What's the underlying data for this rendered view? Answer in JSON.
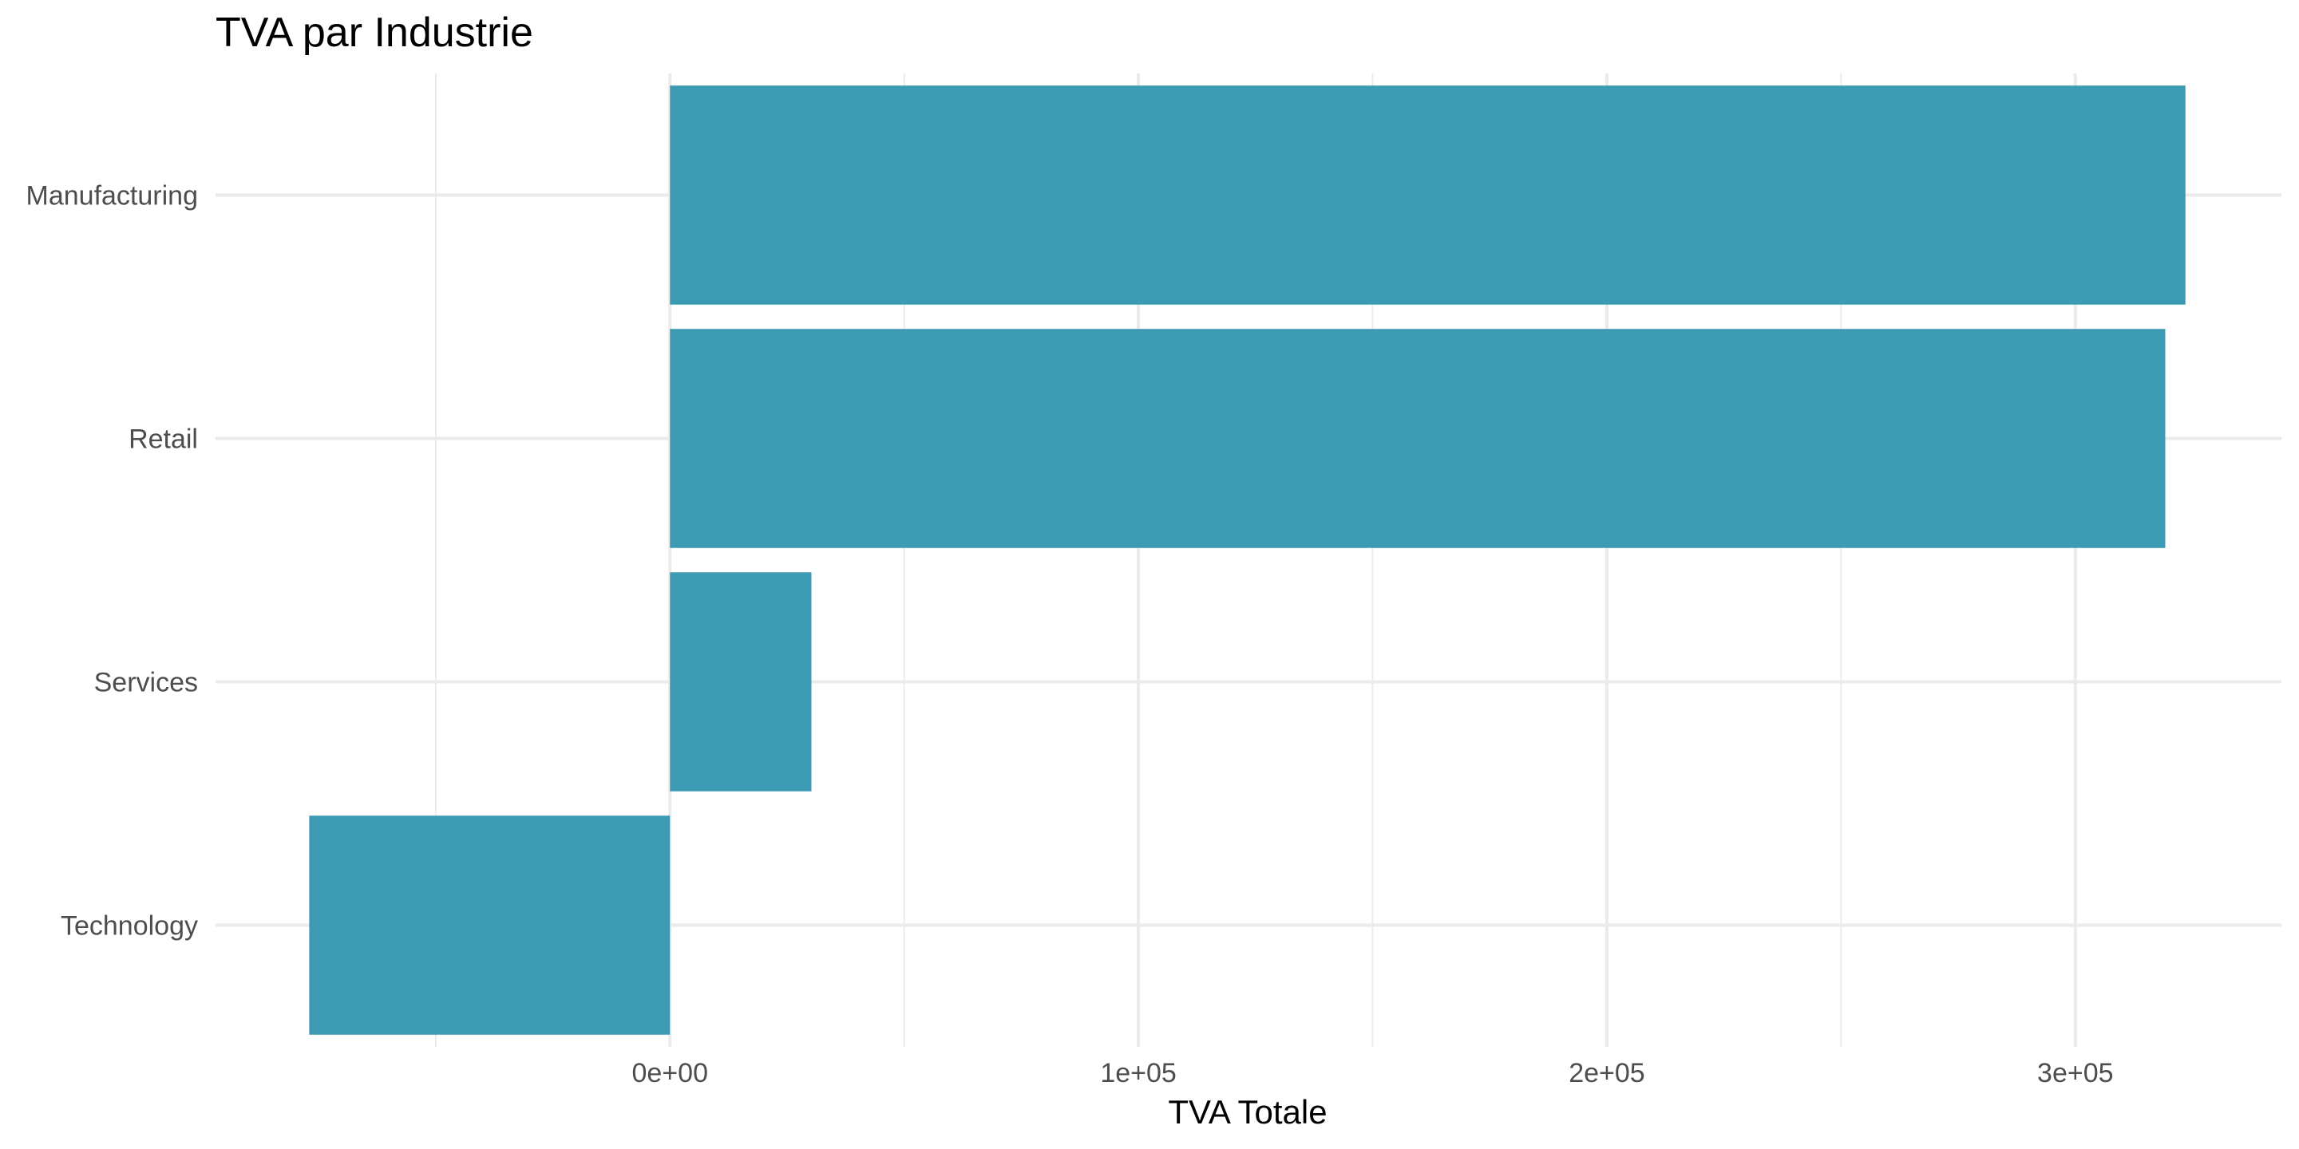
{
  "chart_data": {
    "type": "bar",
    "orientation": "horizontal",
    "title": "TVA par Industrie",
    "xlabel": "TVA Totale",
    "ylabel": "",
    "categories": [
      "Manufacturing",
      "Retail",
      "Services",
      "Technology"
    ],
    "values": [
      323500,
      319200,
      30200,
      -77000
    ],
    "xlim": [
      -97000,
      344000
    ],
    "x_ticks": [
      0,
      100000,
      200000,
      300000
    ],
    "x_tick_labels": [
      "0e+00",
      "1e+05",
      "2e+05",
      "3e+05"
    ],
    "grid": true,
    "legend": "none",
    "bar_color": "#3C9AB2",
    "background": "#FFFFFF",
    "grid_color": "#EBEBEB"
  }
}
